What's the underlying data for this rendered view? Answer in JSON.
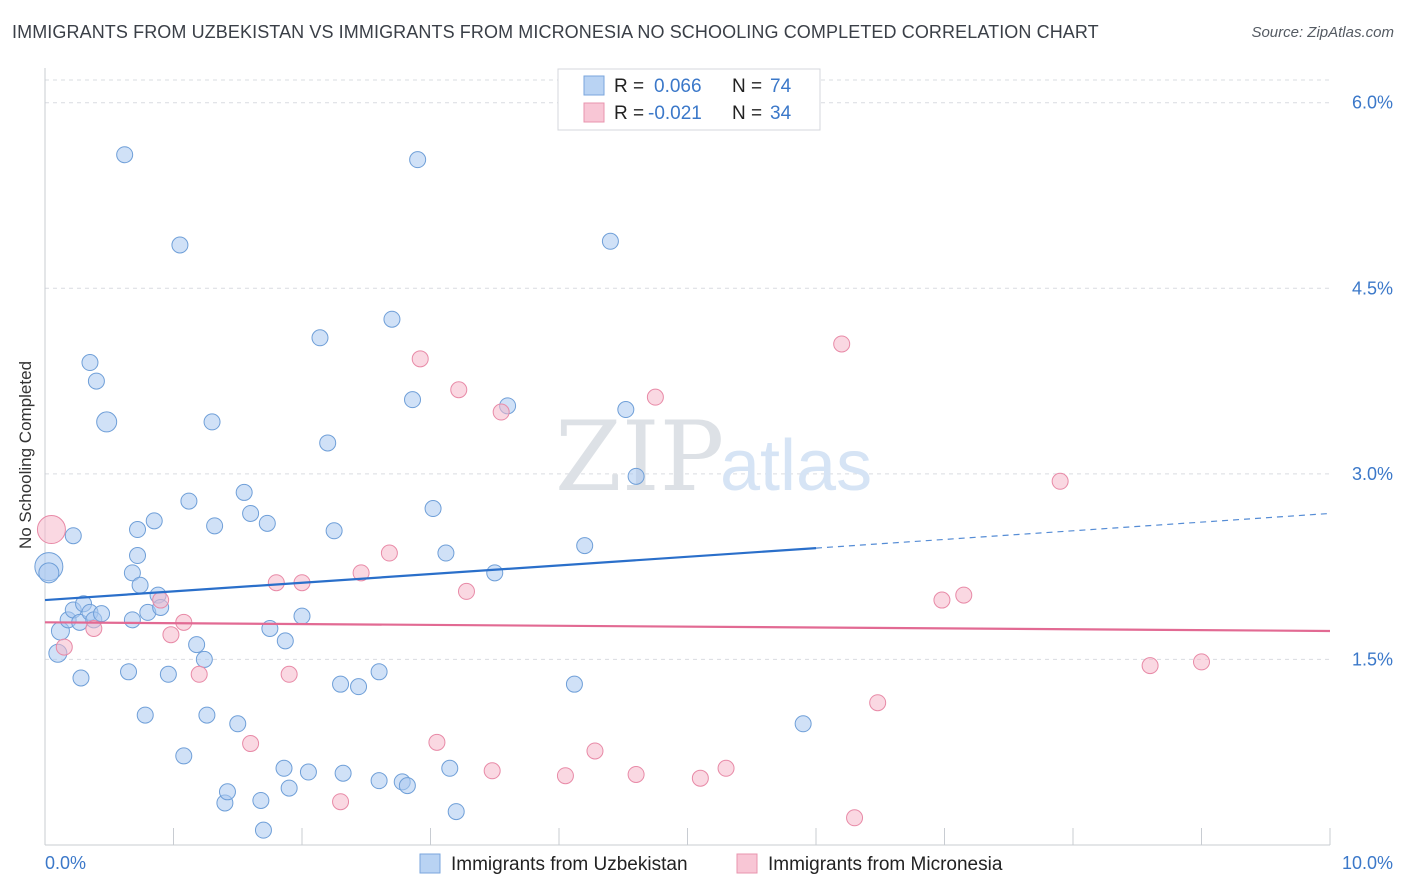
{
  "chart_data": {
    "type": "scatter",
    "title": "IMMIGRANTS FROM UZBEKISTAN VS IMMIGRANTS FROM MICRONESIA NO SCHOOLING COMPLETED CORRELATION CHART",
    "source": "Source: ZipAtlas.com",
    "xlabel": "",
    "ylabel": "No Schooling Completed",
    "xlim": [
      0,
      10
    ],
    "ylim": [
      0,
      6.2
    ],
    "x_tick_labels": [
      {
        "value": 0,
        "label": "0.0%"
      },
      {
        "value": 10,
        "label": "10.0%"
      }
    ],
    "y_tick_labels": [
      {
        "value": 1.5,
        "label": "1.5%"
      },
      {
        "value": 3.0,
        "label": "3.0%"
      },
      {
        "value": 4.5,
        "label": "4.5%"
      },
      {
        "value": 6.0,
        "label": "6.0%"
      }
    ],
    "watermark": {
      "zip": "ZIP",
      "atlas": "atlas"
    },
    "legend": {
      "r_label": "R =",
      "n_label": "N =",
      "entries": [
        {
          "r": "0.066",
          "n": "74"
        },
        {
          "r": "-0.021",
          "n": "34"
        }
      ]
    },
    "series": [
      {
        "name": "Immigrants from Uzbekistan",
        "color": "#a9c8f0",
        "stroke": "#6f9fd8",
        "trend": {
          "x0": 0,
          "y0": 1.98,
          "x1": 6,
          "y1": 2.4,
          "dash_to_x": 10,
          "dash_to_y": 2.68,
          "color": "#2a6fca"
        },
        "points": [
          [
            0.03,
            2.25,
            14
          ],
          [
            0.03,
            2.2,
            10
          ],
          [
            0.1,
            1.55,
            9
          ],
          [
            0.12,
            1.73,
            9
          ],
          [
            0.18,
            1.82,
            8
          ],
          [
            0.22,
            1.9,
            8
          ],
          [
            0.22,
            2.5,
            8
          ],
          [
            0.27,
            1.8,
            8
          ],
          [
            0.28,
            1.35,
            8
          ],
          [
            0.3,
            1.95,
            8
          ],
          [
            0.35,
            3.9,
            8
          ],
          [
            0.35,
            1.88,
            8
          ],
          [
            0.38,
            1.82,
            8
          ],
          [
            0.4,
            3.75,
            8
          ],
          [
            0.44,
            1.87,
            8
          ],
          [
            0.48,
            3.42,
            10
          ],
          [
            0.62,
            5.58,
            8
          ],
          [
            0.65,
            1.4,
            8
          ],
          [
            0.68,
            2.2,
            8
          ],
          [
            0.68,
            1.82,
            8
          ],
          [
            0.72,
            2.34,
            8
          ],
          [
            0.72,
            2.55,
            8
          ],
          [
            0.74,
            2.1,
            8
          ],
          [
            0.78,
            1.05,
            8
          ],
          [
            0.8,
            1.88,
            8
          ],
          [
            0.85,
            2.62,
            8
          ],
          [
            0.88,
            2.02,
            8
          ],
          [
            0.9,
            1.92,
            8
          ],
          [
            0.96,
            1.38,
            8
          ],
          [
            1.05,
            4.85,
            8
          ],
          [
            1.08,
            0.72,
            8
          ],
          [
            1.12,
            2.78,
            8
          ],
          [
            1.18,
            1.62,
            8
          ],
          [
            1.24,
            1.5,
            8
          ],
          [
            1.26,
            1.05,
            8
          ],
          [
            1.3,
            3.42,
            8
          ],
          [
            1.32,
            2.58,
            8
          ],
          [
            1.4,
            0.34,
            8
          ],
          [
            1.42,
            0.43,
            8
          ],
          [
            1.5,
            0.98,
            8
          ],
          [
            1.55,
            2.85,
            8
          ],
          [
            1.6,
            2.68,
            8
          ],
          [
            1.68,
            0.36,
            8
          ],
          [
            1.7,
            0.12,
            8
          ],
          [
            1.73,
            2.6,
            8
          ],
          [
            1.75,
            1.75,
            8
          ],
          [
            1.86,
            0.62,
            8
          ],
          [
            1.87,
            1.65,
            8
          ],
          [
            1.9,
            0.46,
            8
          ],
          [
            2.0,
            1.85,
            8
          ],
          [
            2.05,
            0.59,
            8
          ],
          [
            2.14,
            4.1,
            8
          ],
          [
            2.2,
            3.25,
            8
          ],
          [
            2.25,
            2.54,
            8
          ],
          [
            2.3,
            1.3,
            8
          ],
          [
            2.32,
            0.58,
            8
          ],
          [
            2.44,
            1.28,
            8
          ],
          [
            2.6,
            1.4,
            8
          ],
          [
            2.6,
            0.52,
            8
          ],
          [
            2.7,
            4.25,
            8
          ],
          [
            2.78,
            0.51,
            8
          ],
          [
            2.82,
            0.48,
            8
          ],
          [
            2.86,
            3.6,
            8
          ],
          [
            2.9,
            5.54,
            8
          ],
          [
            3.02,
            2.72,
            8
          ],
          [
            3.12,
            2.36,
            8
          ],
          [
            3.15,
            0.62,
            8
          ],
          [
            3.2,
            0.27,
            8
          ],
          [
            3.5,
            2.2,
            8
          ],
          [
            3.6,
            3.55,
            8
          ],
          [
            4.12,
            1.3,
            8
          ],
          [
            4.2,
            2.42,
            8
          ],
          [
            4.4,
            4.88,
            8
          ],
          [
            4.52,
            3.52,
            8
          ],
          [
            4.6,
            2.98,
            8
          ],
          [
            5.9,
            0.98,
            8
          ]
        ]
      },
      {
        "name": "Immigrants from Micronesia",
        "color": "#f6b8cb",
        "stroke": "#e88aa7",
        "trend": {
          "x0": 0,
          "y0": 1.8,
          "x1": 10,
          "y1": 1.73,
          "color": "#e26a93"
        },
        "points": [
          [
            0.05,
            2.55,
            14
          ],
          [
            0.38,
            1.75,
            8
          ],
          [
            0.9,
            1.98,
            8
          ],
          [
            0.98,
            1.7,
            8
          ],
          [
            1.08,
            1.8,
            8
          ],
          [
            1.2,
            1.38,
            8
          ],
          [
            1.6,
            0.82,
            8
          ],
          [
            1.9,
            1.38,
            8
          ],
          [
            1.8,
            2.12,
            8
          ],
          [
            2.0,
            2.12,
            8
          ],
          [
            2.3,
            0.35,
            8
          ],
          [
            2.46,
            2.2,
            8
          ],
          [
            2.68,
            2.36,
            8
          ],
          [
            2.92,
            3.93,
            8
          ],
          [
            3.05,
            0.83,
            8
          ],
          [
            3.22,
            3.68,
            8
          ],
          [
            3.28,
            2.05,
            8
          ],
          [
            3.48,
            0.6,
            8
          ],
          [
            3.55,
            3.5,
            8
          ],
          [
            4.05,
            0.56,
            8
          ],
          [
            4.28,
            0.76,
            8
          ],
          [
            4.6,
            0.57,
            8
          ],
          [
            4.75,
            3.62,
            8
          ],
          [
            5.1,
            0.54,
            8
          ],
          [
            5.3,
            0.62,
            8
          ],
          [
            6.2,
            4.05,
            8
          ],
          [
            6.3,
            0.22,
            8
          ],
          [
            6.48,
            1.15,
            8
          ],
          [
            6.98,
            1.98,
            8
          ],
          [
            7.15,
            2.02,
            8
          ],
          [
            7.9,
            2.94,
            8
          ],
          [
            8.6,
            1.45,
            8
          ],
          [
            9.0,
            1.48,
            8
          ],
          [
            0.15,
            1.6,
            8
          ]
        ]
      }
    ]
  }
}
